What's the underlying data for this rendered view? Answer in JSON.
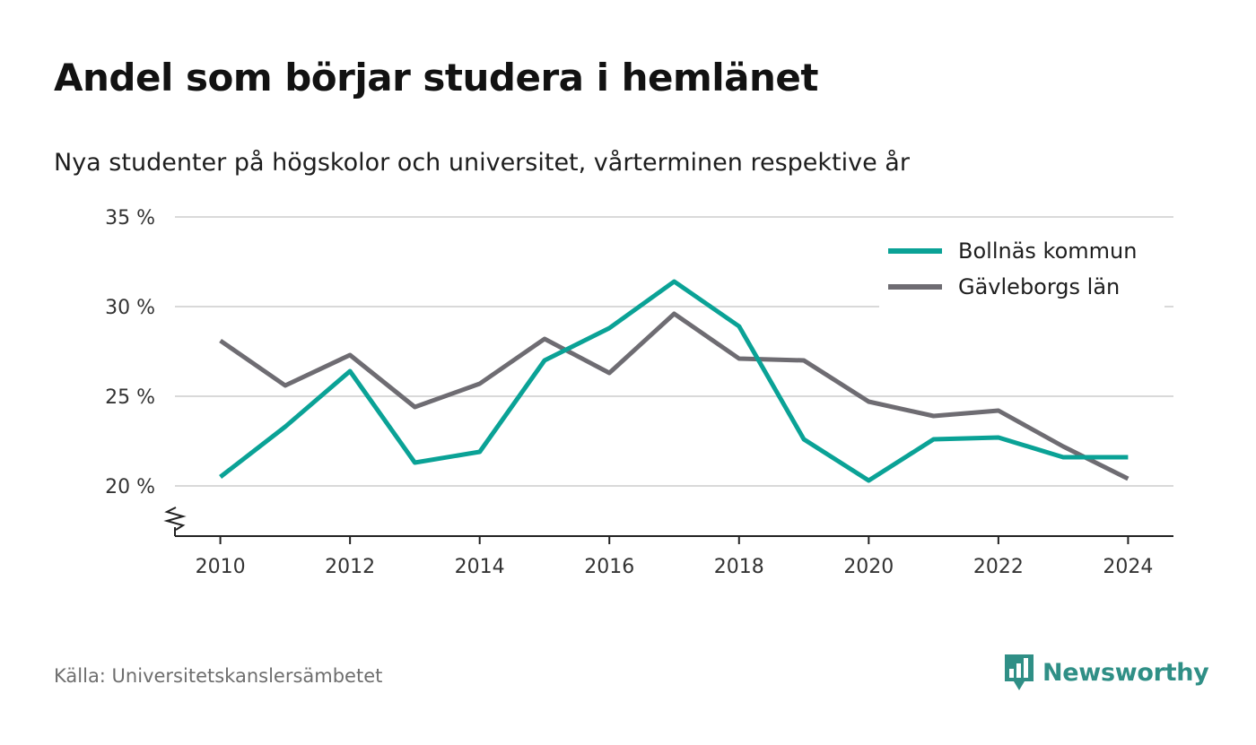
{
  "title": "Andel som börjar studera i hemlänet",
  "subtitle": "Nya studenter på högskolor och universitet, vårterminen respektive år",
  "source": "Källa: Universitetskanslersämbetet",
  "brand": {
    "name": "Newsworthy",
    "icon": "newsworthy-logo-icon",
    "color": "#2f8f86"
  },
  "chart_data": {
    "type": "line",
    "x": [
      2010,
      2011,
      2012,
      2013,
      2014,
      2015,
      2016,
      2017,
      2018,
      2019,
      2020,
      2021,
      2022,
      2023,
      2024
    ],
    "x_ticks": [
      "2010",
      "2012",
      "2014",
      "2016",
      "2018",
      "2020",
      "2022",
      "2024"
    ],
    "y_ticks": [
      "20 %",
      "25 %",
      "30 %",
      "35 %"
    ],
    "ylim": [
      17.2,
      35
    ],
    "xlim": [
      2009.3,
      2024.7
    ],
    "y_axis_broken": true,
    "grid": true,
    "legend_position": "top-right",
    "series": [
      {
        "name": "Bollnäs kommun",
        "color": "#0aa296",
        "values": [
          20.5,
          23.3,
          26.4,
          21.3,
          21.9,
          27.0,
          28.8,
          31.4,
          28.9,
          22.6,
          20.3,
          22.6,
          22.7,
          21.6,
          21.6
        ]
      },
      {
        "name": "Gävleborgs län",
        "color": "#6e6c72",
        "values": [
          28.1,
          25.6,
          27.3,
          24.4,
          25.7,
          28.2,
          26.3,
          29.6,
          27.1,
          27.0,
          24.7,
          23.9,
          24.2,
          22.2,
          20.4
        ]
      }
    ]
  }
}
